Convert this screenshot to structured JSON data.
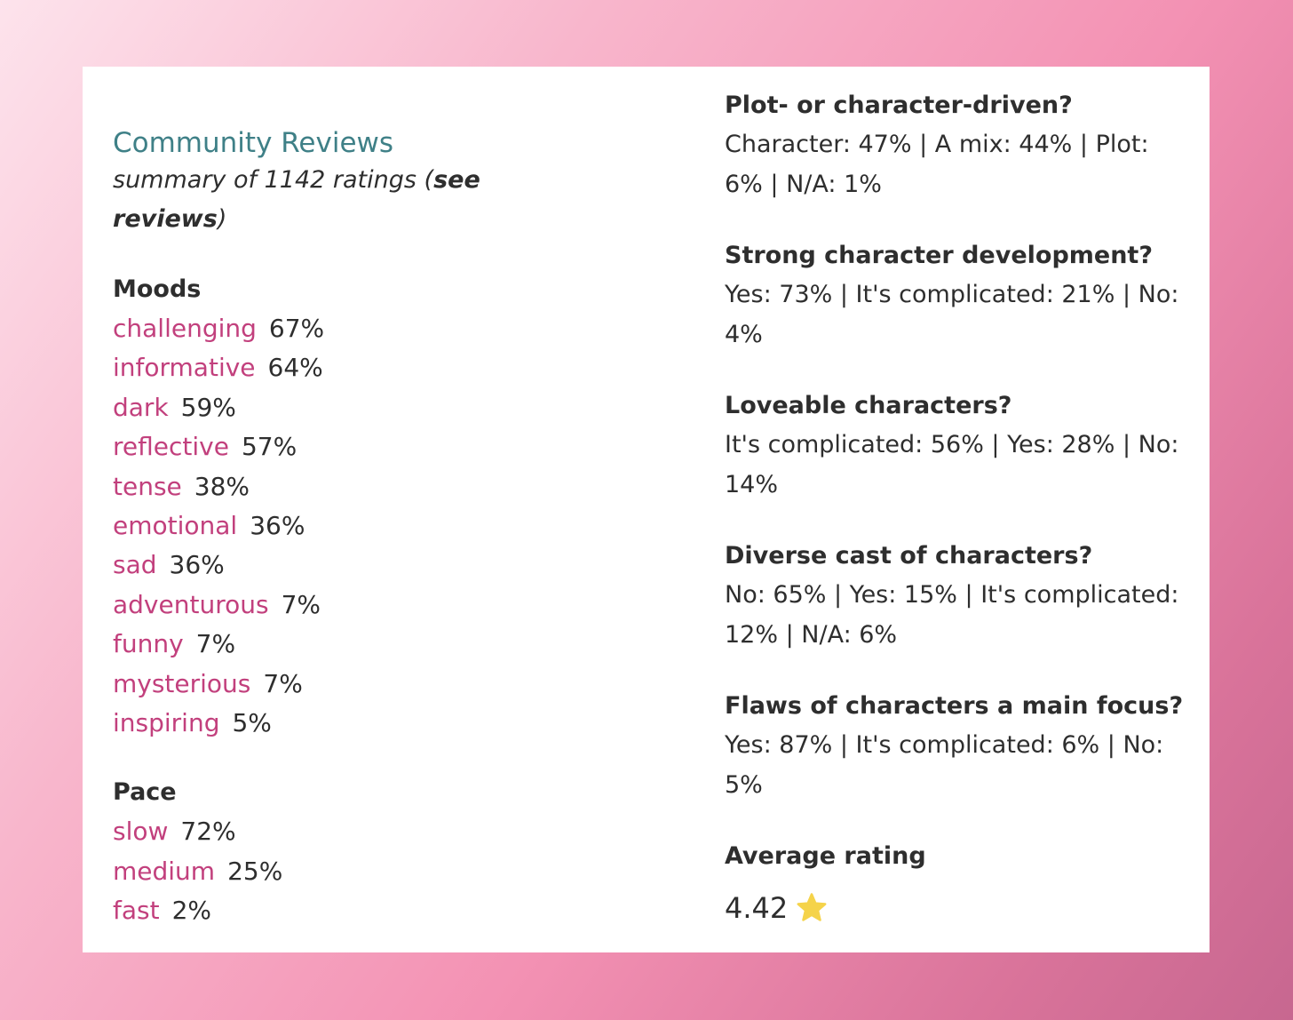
{
  "header": {
    "title": "Community Reviews",
    "summary_prefix": "summary of 1142 ratings (",
    "see_reviews_label": "see reviews",
    "summary_suffix": ")"
  },
  "moods": {
    "heading": "Moods",
    "items": [
      {
        "label": "challenging",
        "pct": "67%"
      },
      {
        "label": "informative",
        "pct": "64%"
      },
      {
        "label": "dark",
        "pct": "59%"
      },
      {
        "label": "reflective",
        "pct": "57%"
      },
      {
        "label": "tense",
        "pct": "38%"
      },
      {
        "label": "emotional",
        "pct": "36%"
      },
      {
        "label": "sad",
        "pct": "36%"
      },
      {
        "label": "adventurous",
        "pct": "7%"
      },
      {
        "label": "funny",
        "pct": "7%"
      },
      {
        "label": "mysterious",
        "pct": "7%"
      },
      {
        "label": "inspiring",
        "pct": "5%"
      }
    ]
  },
  "pace": {
    "heading": "Pace",
    "items": [
      {
        "label": "slow",
        "pct": "72%"
      },
      {
        "label": "medium",
        "pct": "25%"
      },
      {
        "label": "fast",
        "pct": "2%"
      }
    ]
  },
  "questions": [
    {
      "question": "Plot- or character-driven?",
      "answer": "Character: 47% | A mix: 44% | Plot: 6% | N/A: 1%"
    },
    {
      "question": "Strong character development?",
      "answer": "Yes: 73% | It's complicated: 21% | No: 4%"
    },
    {
      "question": "Loveable characters?",
      "answer": "It's complicated: 56% | Yes: 28% | No: 14%"
    },
    {
      "question": "Diverse cast of characters?",
      "answer": "No: 65% | Yes: 15% | It's complicated: 12% | N/A: 6%"
    },
    {
      "question": "Flaws of characters a main focus?",
      "answer": "Yes: 87% | It's complicated: 6% | No: 5%"
    }
  ],
  "rating": {
    "heading": "Average rating",
    "value": "4.42",
    "icon": "star-icon",
    "icon_color": "#f5d34a"
  },
  "colors": {
    "title": "#3f8087",
    "tag": "#c2407d",
    "text": "#2e2e2e"
  }
}
